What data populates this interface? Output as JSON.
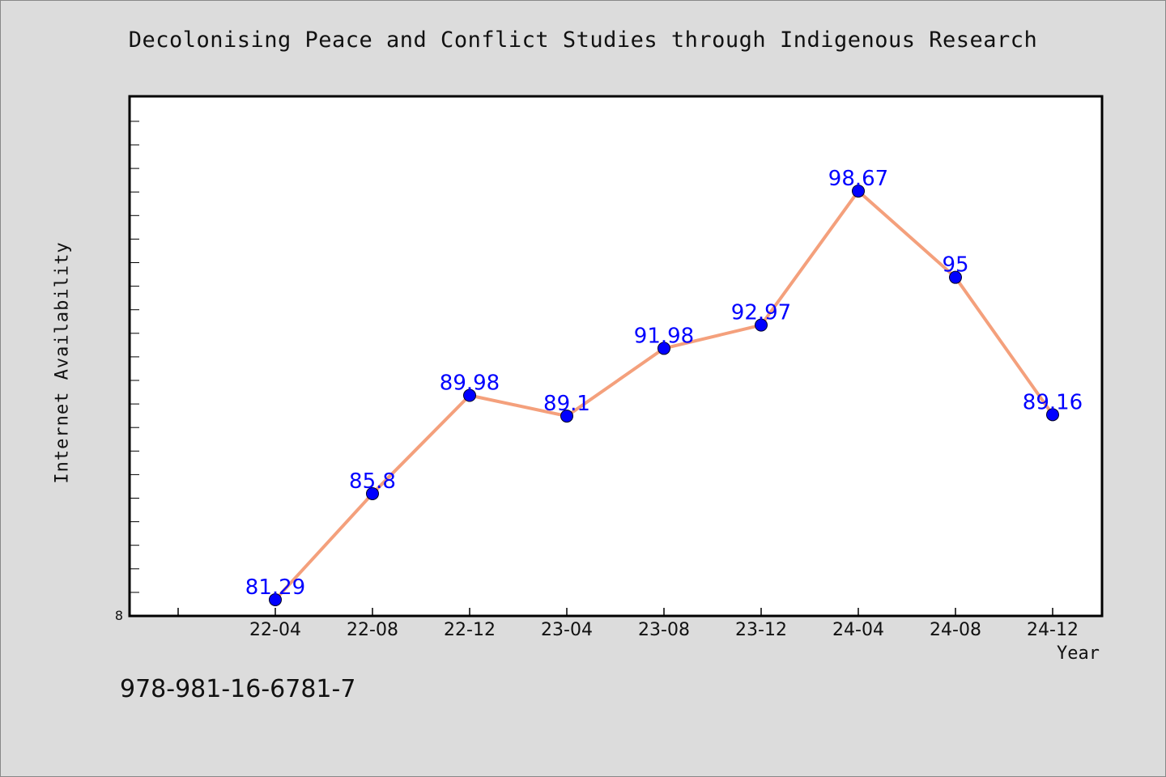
{
  "chart_data": {
    "type": "line",
    "title": "Decolonising Peace and Conflict Studies through Indigenous Research",
    "xlabel": "Year",
    "ylabel": "Internet Availability",
    "categories": [
      "22-04",
      "22-08",
      "22-12",
      "23-04",
      "23-08",
      "23-12",
      "24-04",
      "24-08",
      "24-12"
    ],
    "series": [
      {
        "values": [
          81.29,
          85.8,
          89.98,
          89.1,
          91.98,
          92.97,
          98.67,
          95,
          89.16
        ],
        "labels": [
          "81.29",
          "85.8",
          "89.98",
          "89.1",
          "91.98",
          "92.97",
          "98.67",
          "95",
          "89.16"
        ]
      }
    ],
    "y_min_label": "8",
    "ylim": [
      80.6,
      102.7
    ],
    "grid": false,
    "line_color": "#f4a07c",
    "marker_color": "#0000ff",
    "label_color": "#0000ff"
  },
  "footnote": "978-981-16-6781-7"
}
